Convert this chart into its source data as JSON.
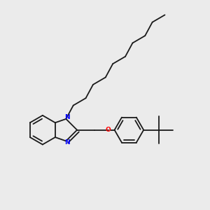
{
  "background_color": "#ebebeb",
  "bond_color": "#1a1a1a",
  "N_color": "#0000ff",
  "O_color": "#ff0000",
  "bond_width": 1.3,
  "figsize": [
    3.0,
    3.0
  ],
  "dpi": 100,
  "xlim": [
    0.0,
    10.0
  ],
  "ylim": [
    0.0,
    10.0
  ]
}
